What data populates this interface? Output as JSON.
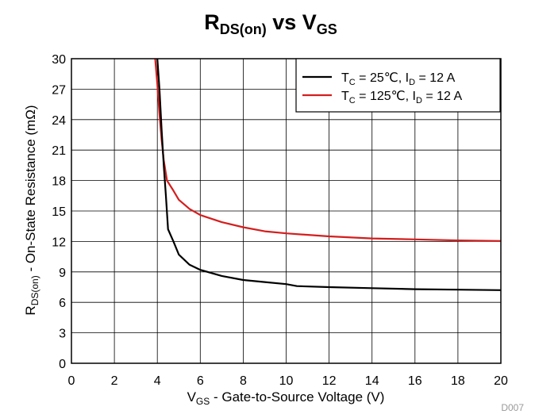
{
  "chart_data": {
    "type": "line",
    "title": {
      "main": "R",
      "main_sub": "DS(on)",
      "mid": " vs V",
      "mid_sub": "GS"
    },
    "xlabel": {
      "pre": "V",
      "sub": "GS",
      "post": " - Gate-to-Source Voltage (V)"
    },
    "ylabel": {
      "pre": "R",
      "sub": "DS(on)",
      "post": " - On-State Resistance (mΩ)"
    },
    "xlim": [
      0,
      20
    ],
    "ylim": [
      0,
      30
    ],
    "xticks": [
      0,
      2,
      4,
      6,
      8,
      10,
      12,
      14,
      16,
      18,
      20
    ],
    "yticks": [
      0,
      3,
      6,
      9,
      12,
      15,
      18,
      21,
      24,
      27,
      30
    ],
    "grid": true,
    "legend_position": "top-right",
    "series": [
      {
        "name": "T_C = 25℃, I_D = 12 A",
        "label_parts": [
          "T",
          "C",
          " = 25℃, I",
          "D",
          " = 12 A"
        ],
        "color": "#000000",
        "x": [
          4.0,
          4.1,
          4.2,
          4.3,
          4.4,
          4.5,
          4.75,
          5.0,
          5.5,
          6.0,
          7.0,
          8.0,
          9.0,
          10.0,
          10.5,
          12.0,
          14.0,
          16.0,
          18.0,
          20.0
        ],
        "y": [
          30.0,
          27.0,
          23.0,
          19.5,
          16.5,
          13.2,
          12.0,
          10.7,
          9.7,
          9.2,
          8.6,
          8.2,
          8.0,
          7.8,
          7.6,
          7.5,
          7.4,
          7.3,
          7.25,
          7.2
        ]
      },
      {
        "name": "T_C = 125℃, I_D = 12 A",
        "label_parts": [
          "T",
          "C",
          " = 125℃, I",
          "D",
          " = 12 A"
        ],
        "color": "#d41e1e",
        "x": [
          3.9,
          4.0,
          4.1,
          4.2,
          4.3,
          4.45,
          4.75,
          5.0,
          5.5,
          6.0,
          7.0,
          8.0,
          9.0,
          10.0,
          12.0,
          14.0,
          16.0,
          18.0,
          20.0
        ],
        "y": [
          30.0,
          27.5,
          24.5,
          22.0,
          20.0,
          18.0,
          17.0,
          16.1,
          15.2,
          14.6,
          13.9,
          13.4,
          13.0,
          12.8,
          12.5,
          12.3,
          12.2,
          12.1,
          12.05
        ]
      }
    ],
    "footnote": "D007"
  }
}
